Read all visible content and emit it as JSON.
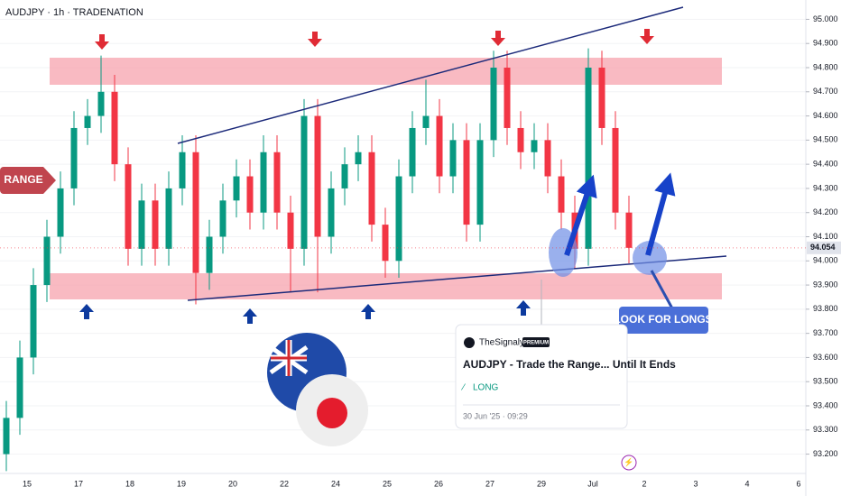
{
  "chart_data": {
    "type": "candlestick",
    "title": "AUDJPY · 1h · TRADENATION",
    "categories": [
      null,
      null,
      null,
      null,
      null,
      null,
      null,
      null,
      null,
      null,
      null,
      null,
      null,
      null,
      null,
      null,
      null,
      null,
      null,
      null,
      null,
      null,
      null,
      null,
      null,
      null,
      null,
      null,
      null,
      null,
      null,
      null,
      null,
      null,
      null,
      null,
      null,
      null,
      null,
      null,
      null,
      null,
      null,
      null,
      null,
      null,
      null
    ],
    "open": [
      93.2,
      93.35,
      93.6,
      93.9,
      94.1,
      94.3,
      94.55,
      94.6,
      94.7,
      94.4,
      94.05,
      94.25,
      94.05,
      94.3,
      94.45,
      93.95,
      94.1,
      94.25,
      94.35,
      94.2,
      94.45,
      94.2,
      94.05,
      94.6,
      94.1,
      94.3,
      94.4,
      94.45,
      94.15,
      94.0,
      94.35,
      94.55,
      94.6,
      94.35,
      94.5,
      94.15,
      94.5,
      94.8,
      94.55,
      94.45,
      94.5,
      94.35,
      94.2,
      94.05,
      94.8,
      94.55,
      94.2
    ],
    "high": [
      93.42,
      93.67,
      93.97,
      94.17,
      94.37,
      94.62,
      94.67,
      94.85,
      94.77,
      94.47,
      94.32,
      94.32,
      94.37,
      94.52,
      94.52,
      94.17,
      94.32,
      94.42,
      94.42,
      94.52,
      94.52,
      94.27,
      94.67,
      94.67,
      94.37,
      94.47,
      94.52,
      94.52,
      94.22,
      94.42,
      94.62,
      94.75,
      94.67,
      94.57,
      94.57,
      94.57,
      94.87,
      94.87,
      94.62,
      94.57,
      94.57,
      94.42,
      94.27,
      94.88,
      94.87,
      94.62,
      94.27
    ],
    "low": [
      93.13,
      93.28,
      93.53,
      93.83,
      94.03,
      94.23,
      94.48,
      94.53,
      94.33,
      93.98,
      93.98,
      93.98,
      93.98,
      94.23,
      93.82,
      93.88,
      94.03,
      94.18,
      94.13,
      94.13,
      94.13,
      93.87,
      93.98,
      93.87,
      94.03,
      94.23,
      94.33,
      94.08,
      93.93,
      93.93,
      94.28,
      94.48,
      94.28,
      94.28,
      94.08,
      94.08,
      94.43,
      94.48,
      94.38,
      94.38,
      94.28,
      94.13,
      93.97,
      93.98,
      94.48,
      94.13,
      93.99
    ],
    "close": [
      93.35,
      93.6,
      93.9,
      94.1,
      94.3,
      94.55,
      94.6,
      94.7,
      94.4,
      94.05,
      94.25,
      94.05,
      94.3,
      94.45,
      93.95,
      94.1,
      94.25,
      94.35,
      94.2,
      94.45,
      94.2,
      94.05,
      94.6,
      94.1,
      94.3,
      94.4,
      94.45,
      94.15,
      94.0,
      94.35,
      94.55,
      94.6,
      94.35,
      94.5,
      94.15,
      94.5,
      94.8,
      94.55,
      94.45,
      94.5,
      94.35,
      94.2,
      94.05,
      94.8,
      94.55,
      94.2,
      94.054
    ],
    "up_color": "#089981",
    "down_color": "#f23645",
    "ylim": [
      93.12,
      95.08
    ],
    "yticks": [
      {
        "value": 95.0,
        "label": "95.000"
      },
      {
        "value": 94.9,
        "label": "94.900"
      },
      {
        "value": 94.8,
        "label": "94.800"
      },
      {
        "value": 94.7,
        "label": "94.700"
      },
      {
        "value": 94.6,
        "label": "94.600"
      },
      {
        "value": 94.5,
        "label": "94.500"
      },
      {
        "value": 94.4,
        "label": "94.400"
      },
      {
        "value": 94.3,
        "label": "94.300"
      },
      {
        "value": 94.2,
        "label": "94.200"
      },
      {
        "value": 94.1,
        "label": "94.100"
      },
      {
        "value": 94.0,
        "label": "94.000"
      },
      {
        "value": 93.9,
        "label": "93.900"
      },
      {
        "value": 93.8,
        "label": "93.800"
      },
      {
        "value": 93.7,
        "label": "93.700"
      },
      {
        "value": 93.6,
        "label": "93.600"
      },
      {
        "value": 93.5,
        "label": "93.500"
      },
      {
        "value": 93.4,
        "label": "93.400"
      },
      {
        "value": 93.3,
        "label": "93.300"
      },
      {
        "value": 93.2,
        "label": "93.200"
      }
    ],
    "x_labels": [
      "15",
      "17",
      "18",
      "19",
      "20",
      "22",
      "24",
      "25",
      "26",
      "27",
      "29",
      "Jul",
      "2",
      "3",
      "4",
      "6"
    ],
    "grid": true,
    "annotations": {
      "range": "RANGE",
      "look_for_longs": "LOOK FOR LONGS",
      "card_author": "TheSignalyst",
      "card_badge": "PREMIUM",
      "card_title": "AUDJPY - Trade the Range... Until It Ends",
      "card_tag": "LONG",
      "card_date": "30 Jun '25 · 09:29"
    }
  }
}
